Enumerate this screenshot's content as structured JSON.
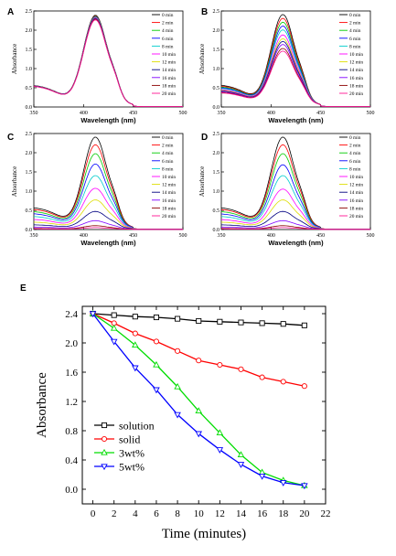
{
  "figure": {
    "panel_letters": [
      "A",
      "B",
      "C",
      "D",
      "E"
    ]
  },
  "chart_data": [
    {
      "type": "line",
      "panel": "A",
      "xlabel": "Wavelength (nm)",
      "ylabel": "Absorbance",
      "xlim": [
        350,
        500
      ],
      "ylim": [
        0,
        2.5
      ],
      "xticks": [
        "350",
        "400",
        "450",
        "500"
      ],
      "yticks": [
        "0.0",
        "0.5",
        "1.0",
        "1.5",
        "2.0",
        "2.5"
      ],
      "legend_position": "top-right",
      "series": [
        {
          "name": "0 min",
          "peak": 2.38,
          "baseline": 0.08,
          "color": "#000000"
        },
        {
          "name": "2 min",
          "peak": 2.36,
          "baseline": 0.08,
          "color": "#ff0000"
        },
        {
          "name": "4 min",
          "peak": 2.35,
          "baseline": 0.08,
          "color": "#00cc00"
        },
        {
          "name": "6 min",
          "peak": 2.34,
          "baseline": 0.08,
          "color": "#0000ff"
        },
        {
          "name": "8 min",
          "peak": 2.33,
          "baseline": 0.08,
          "color": "#00cccc"
        },
        {
          "name": "10 min",
          "peak": 2.32,
          "baseline": 0.08,
          "color": "#ff00ff"
        },
        {
          "name": "12 min",
          "peak": 2.31,
          "baseline": 0.08,
          "color": "#dddd00"
        },
        {
          "name": "14 min",
          "peak": 2.3,
          "baseline": 0.08,
          "color": "#000080"
        },
        {
          "name": "16 min",
          "peak": 2.29,
          "baseline": 0.08,
          "color": "#7f00ff"
        },
        {
          "name": "18 min",
          "peak": 2.28,
          "baseline": 0.08,
          "color": "#8b0000"
        },
        {
          "name": "20 min",
          "peak": 2.26,
          "baseline": 0.08,
          "color": "#ff1493"
        }
      ]
    },
    {
      "type": "line",
      "panel": "B",
      "xlabel": "Wavelength (nm)",
      "ylabel": "Absorbance",
      "xlim": [
        350,
        500
      ],
      "ylim": [
        0,
        2.5
      ],
      "xticks": [
        "350",
        "400",
        "450",
        "500"
      ],
      "yticks": [
        "0.0",
        "0.5",
        "1.0",
        "1.5",
        "2.0",
        "2.5"
      ],
      "legend_position": "top-right",
      "series": [
        {
          "name": "0 min",
          "peak": 2.4,
          "baseline": 0.08,
          "color": "#000000"
        },
        {
          "name": "2 min",
          "peak": 2.3,
          "baseline": 0.08,
          "color": "#ff0000"
        },
        {
          "name": "4 min",
          "peak": 2.2,
          "baseline": 0.08,
          "color": "#00cc00"
        },
        {
          "name": "6 min",
          "peak": 2.1,
          "baseline": 0.08,
          "color": "#0000ff"
        },
        {
          "name": "8 min",
          "peak": 2.0,
          "baseline": 0.08,
          "color": "#00cccc"
        },
        {
          "name": "10 min",
          "peak": 1.87,
          "baseline": 0.08,
          "color": "#ff00ff"
        },
        {
          "name": "12 min",
          "peak": 1.77,
          "baseline": 0.08,
          "color": "#dddd00"
        },
        {
          "name": "14 min",
          "peak": 1.7,
          "baseline": 0.08,
          "color": "#000080"
        },
        {
          "name": "16 min",
          "peak": 1.62,
          "baseline": 0.08,
          "color": "#7f00ff"
        },
        {
          "name": "18 min",
          "peak": 1.52,
          "baseline": 0.08,
          "color": "#8b0000"
        },
        {
          "name": "20 min",
          "peak": 1.45,
          "baseline": 0.08,
          "color": "#ff1493"
        }
      ]
    },
    {
      "type": "line",
      "panel": "C",
      "xlabel": "Wavelength (nm)",
      "ylabel": "Absorbance",
      "xlim": [
        350,
        500
      ],
      "ylim": [
        0,
        2.5
      ],
      "xticks": [
        "350",
        "400",
        "450",
        "500"
      ],
      "yticks": [
        "0.0",
        "0.5",
        "1.0",
        "1.5",
        "2.0",
        "2.5"
      ],
      "legend_position": "top-right",
      "series": [
        {
          "name": "0 min",
          "peak": 2.4,
          "baseline": 0.08,
          "color": "#000000"
        },
        {
          "name": "2 min",
          "peak": 2.2,
          "baseline": 0.08,
          "color": "#ff0000"
        },
        {
          "name": "4 min",
          "peak": 1.97,
          "baseline": 0.07,
          "color": "#00cc00"
        },
        {
          "name": "6 min",
          "peak": 1.7,
          "baseline": 0.07,
          "color": "#0000ff"
        },
        {
          "name": "8 min",
          "peak": 1.4,
          "baseline": 0.06,
          "color": "#00cccc"
        },
        {
          "name": "10 min",
          "peak": 1.07,
          "baseline": 0.05,
          "color": "#ff00ff"
        },
        {
          "name": "12 min",
          "peak": 0.77,
          "baseline": 0.04,
          "color": "#dddd00"
        },
        {
          "name": "14 min",
          "peak": 0.47,
          "baseline": 0.03,
          "color": "#000080"
        },
        {
          "name": "16 min",
          "peak": 0.23,
          "baseline": 0.02,
          "color": "#7f00ff"
        },
        {
          "name": "18 min",
          "peak": 0.1,
          "baseline": 0.01,
          "color": "#8b0000"
        },
        {
          "name": "20 min",
          "peak": 0.05,
          "baseline": 0.01,
          "color": "#ff1493"
        }
      ]
    },
    {
      "type": "line",
      "panel": "D",
      "xlabel": "Wavelength (nm)",
      "ylabel": "Absorbance",
      "xlim": [
        350,
        500
      ],
      "ylim": [
        0,
        2.5
      ],
      "xticks": [
        "350",
        "400",
        "450",
        "500"
      ],
      "yticks": [
        "0.0",
        "0.5",
        "1.0",
        "1.5",
        "2.0",
        "2.5"
      ],
      "legend_position": "top-right",
      "series": [
        {
          "name": "0 min",
          "peak": 2.4,
          "baseline": 0.08,
          "color": "#000000"
        },
        {
          "name": "2 min",
          "peak": 2.2,
          "baseline": 0.08,
          "color": "#ff0000"
        },
        {
          "name": "4 min",
          "peak": 1.97,
          "baseline": 0.07,
          "color": "#00cc00"
        },
        {
          "name": "6 min",
          "peak": 1.68,
          "baseline": 0.07,
          "color": "#0000ff"
        },
        {
          "name": "8 min",
          "peak": 1.4,
          "baseline": 0.06,
          "color": "#00cccc"
        },
        {
          "name": "10 min",
          "peak": 1.05,
          "baseline": 0.05,
          "color": "#ff00ff"
        },
        {
          "name": "12 min",
          "peak": 0.77,
          "baseline": 0.04,
          "color": "#dddd00"
        },
        {
          "name": "14 min",
          "peak": 0.47,
          "baseline": 0.03,
          "color": "#000080"
        },
        {
          "name": "16 min",
          "peak": 0.23,
          "baseline": 0.02,
          "color": "#7f00ff"
        },
        {
          "name": "18 min",
          "peak": 0.1,
          "baseline": 0.01,
          "color": "#8b0000"
        },
        {
          "name": "20 min",
          "peak": 0.05,
          "baseline": 0.01,
          "color": "#ff1493"
        }
      ]
    },
    {
      "type": "line",
      "panel": "E",
      "xlabel": "Time (minutes)",
      "ylabel": "Absorbance",
      "xlim": [
        -1,
        22
      ],
      "ylim": [
        -0.2,
        2.5
      ],
      "xticks": [
        "0",
        "2",
        "4",
        "6",
        "8",
        "10",
        "12",
        "14",
        "16",
        "18",
        "20",
        "22"
      ],
      "yticks": [
        "0.0",
        "0.4",
        "0.8",
        "1.2",
        "1.6",
        "2.0",
        "2.4"
      ],
      "legend_position": "left-middle",
      "x": [
        0,
        2,
        4,
        6,
        8,
        10,
        12,
        14,
        16,
        18,
        20
      ],
      "series": [
        {
          "name": "solution",
          "marker": "square",
          "color": "#000000",
          "values": [
            2.4,
            2.38,
            2.36,
            2.35,
            2.33,
            2.3,
            2.29,
            2.28,
            2.27,
            2.26,
            2.24
          ]
        },
        {
          "name": "solid",
          "marker": "circle",
          "color": "#ff0000",
          "values": [
            2.4,
            2.27,
            2.13,
            2.02,
            1.89,
            1.76,
            1.7,
            1.64,
            1.53,
            1.47,
            1.41
          ]
        },
        {
          "name": "3wt%",
          "marker": "triangle-up",
          "color": "#00dd00",
          "values": [
            2.4,
            2.2,
            1.97,
            1.7,
            1.4,
            1.07,
            0.77,
            0.47,
            0.23,
            0.12,
            0.05
          ]
        },
        {
          "name": "5wt%",
          "marker": "triangle-down",
          "color": "#0000ff",
          "values": [
            2.4,
            2.02,
            1.66,
            1.36,
            1.02,
            0.76,
            0.54,
            0.34,
            0.18,
            0.09,
            0.05
          ]
        }
      ]
    }
  ]
}
